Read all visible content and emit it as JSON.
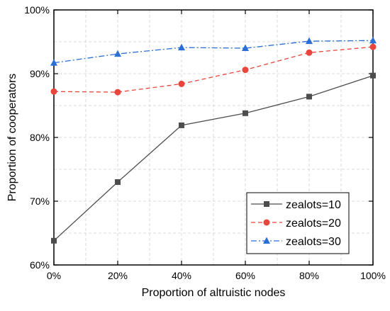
{
  "chart_data": {
    "type": "line",
    "xlabel": "Proportion of altruistic nodes",
    "ylabel": "Proportion of cooperators",
    "x": [
      0,
      20,
      40,
      60,
      80,
      100
    ],
    "x_tick_labels": [
      "0%",
      "20%",
      "40%",
      "60%",
      "80%",
      "100%"
    ],
    "xlim": [
      0,
      100
    ],
    "ylim": [
      60,
      100
    ],
    "y_ticks": [
      60,
      70,
      80,
      90,
      100
    ],
    "y_tick_labels": [
      "60%",
      "70%",
      "80%",
      "90%",
      "100%"
    ],
    "grid": true,
    "legend_position": "bottom-right",
    "series": [
      {
        "name": "zealots=10",
        "values": [
          63.8,
          73.0,
          81.9,
          83.8,
          86.4,
          89.7
        ],
        "color": "#4d4d4d",
        "marker": "square",
        "line_style": "solid"
      },
      {
        "name": "zealots=20",
        "values": [
          87.2,
          87.1,
          88.4,
          90.6,
          93.3,
          94.2
        ],
        "color": "#e8463c",
        "marker": "circle",
        "line_style": "dashed"
      },
      {
        "name": "zealots=30",
        "values": [
          91.7,
          93.1,
          94.1,
          94.0,
          95.1,
          95.2
        ],
        "color": "#2b6fd6",
        "marker": "triangle",
        "line_style": "dash-dot"
      }
    ]
  }
}
